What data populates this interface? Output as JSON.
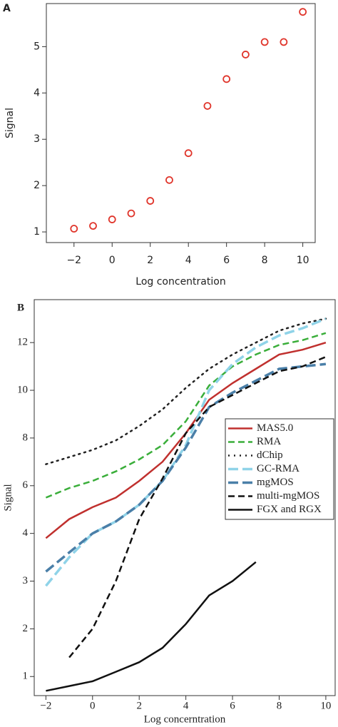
{
  "chart_data": [
    {
      "type": "scatter",
      "label": "A",
      "x": [
        -2,
        -1,
        0,
        1,
        2,
        3,
        4,
        5,
        6,
        7,
        8,
        9,
        10
      ],
      "values": [
        1.07,
        1.13,
        1.27,
        1.4,
        1.67,
        2.12,
        2.7,
        3.72,
        4.3,
        4.83,
        5.1,
        5.1,
        5.75
      ],
      "color": "#e0352b",
      "marker": "open-circle",
      "xlabel": "Log concentration",
      "ylabel": "Signal",
      "xlim": [
        -3.45,
        10.65
      ],
      "ylim": [
        0.77,
        5.93
      ],
      "xticks": [
        {
          "value": -2,
          "label": "−2"
        },
        0,
        2,
        4,
        6,
        8,
        10
      ],
      "yticks": [
        1,
        2,
        3,
        4,
        5
      ]
    },
    {
      "type": "line",
      "label": "B",
      "x": [
        -2,
        -1,
        0,
        1,
        2,
        3,
        4,
        5,
        6,
        7,
        8,
        9,
        10
      ],
      "series": [
        {
          "name": "MAS5.0",
          "color": "#c0302e",
          "style": "solid",
          "values": [
            3.9,
            4.6,
            5.1,
            5.5,
            6.2,
            7.0,
            8.2,
            9.6,
            10.3,
            10.9,
            11.5,
            11.7,
            12.0
          ]
        },
        {
          "name": "RMA",
          "color": "#3aae3a",
          "style": "dashed",
          "values": [
            5.5,
            5.9,
            6.2,
            6.6,
            7.1,
            7.7,
            8.7,
            10.2,
            11.0,
            11.5,
            11.9,
            12.1,
            12.4
          ]
        },
        {
          "name": "dChip",
          "color": "#222222",
          "style": "dotted",
          "values": [
            6.9,
            7.2,
            7.5,
            7.9,
            8.5,
            9.2,
            10.1,
            10.9,
            11.5,
            12.0,
            12.5,
            12.8,
            13.0
          ]
        },
        {
          "name": "GC-RMA",
          "color": "#8fd3e8",
          "style": "long-dashed",
          "values": [
            2.9,
            3.5,
            4.0,
            4.5,
            5.2,
            6.2,
            7.7,
            10.0,
            11.1,
            11.8,
            12.3,
            12.6,
            13.0
          ]
        },
        {
          "name": "mgMOS",
          "color": "#4a7fa8",
          "style": "long-dashed",
          "values": [
            3.2,
            3.6,
            4.0,
            4.5,
            5.2,
            6.2,
            7.6,
            9.3,
            9.9,
            10.4,
            10.9,
            11.0,
            11.1
          ]
        },
        {
          "name": "multi-mgMOS",
          "color": "#111111",
          "style": "dashed",
          "values": [
            null,
            1.4,
            2.0,
            3.0,
            4.6,
            6.3,
            8.2,
            9.3,
            9.8,
            10.3,
            10.8,
            11.0,
            11.4
          ]
        },
        {
          "name": "FGX and RGX",
          "color": "#111111",
          "style": "solid",
          "values": [
            0.7,
            0.8,
            0.9,
            1.1,
            1.3,
            1.6,
            2.1,
            2.7,
            3.0,
            3.4,
            null,
            null,
            null
          ]
        }
      ],
      "xlabel": "Log concerntration",
      "ylabel": "Signal",
      "xlim": [
        -2.5,
        10.4
      ],
      "ylim": [
        0.6,
        13.8
      ],
      "yscale": "tick-interpolated",
      "xticks": [
        {
          "value": -2,
          "label": "−2"
        },
        0,
        2,
        4,
        6,
        8,
        10
      ],
      "yticks": [
        1,
        2,
        3,
        4,
        6,
        8,
        10,
        12
      ],
      "legend": "center right"
    }
  ]
}
